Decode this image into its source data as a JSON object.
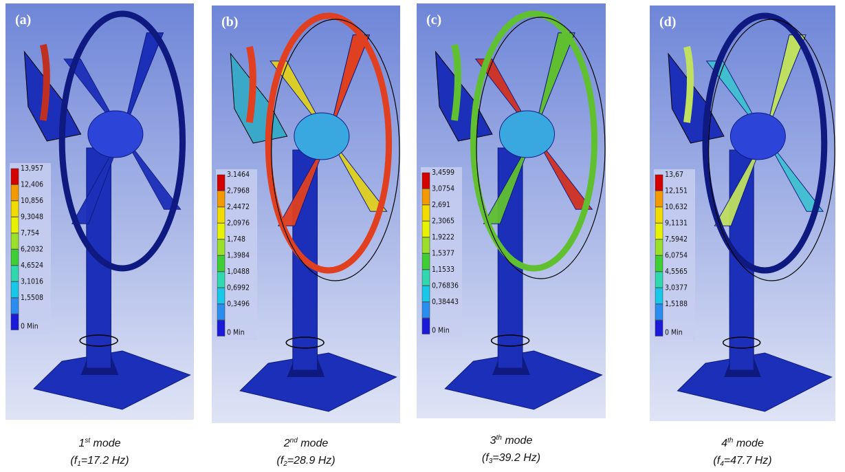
{
  "panels": [
    {
      "label": "(a)",
      "legend": [
        "13,957",
        "12,406",
        "10,856",
        "9,3048",
        "7,754",
        "6,2032",
        "4,6524",
        "3,1016",
        "1,5508",
        "0 Min"
      ],
      "caption": {
        "number": "1",
        "suffix": "st",
        "word": "mode",
        "pre": "(f",
        "sub": "1",
        "post": "=17.2 Hz)"
      }
    },
    {
      "label": "(b)",
      "legend": [
        "3.1464",
        "2,7968",
        "2,4472",
        "2,0976",
        "1,748",
        "1,3984",
        "1,0488",
        "0,6992",
        "0,3496",
        "0 Min"
      ],
      "caption": {
        "number": "2",
        "suffix": "nd",
        "word": "mode",
        "pre": "(f",
        "sub": "2",
        "post": "=28.9 Hz)"
      }
    },
    {
      "label": "(c)",
      "legend": [
        "3,4599",
        "3,0754",
        "2,691",
        "2,3065",
        "1,9222",
        "1,5377",
        "1,1533",
        "0,76836",
        "0,38443",
        "0 Min"
      ],
      "caption": {
        "number": "3",
        "suffix": "th",
        "word": "mode",
        "pre": "(f",
        "sub": "3",
        "post": "=39.2 Hz)"
      }
    },
    {
      "label": "(d)",
      "legend": [
        "13,67",
        "12,151",
        "10,632",
        "9,1131",
        "7,5942",
        "6,0754",
        "4,5565",
        "3,0377",
        "1,5188",
        "0 Min"
      ],
      "caption": {
        "number": "4",
        "suffix": "th",
        "word": "mode",
        "pre": "(f",
        "sub": "4",
        "post": "=47.7 Hz)"
      }
    }
  ]
}
